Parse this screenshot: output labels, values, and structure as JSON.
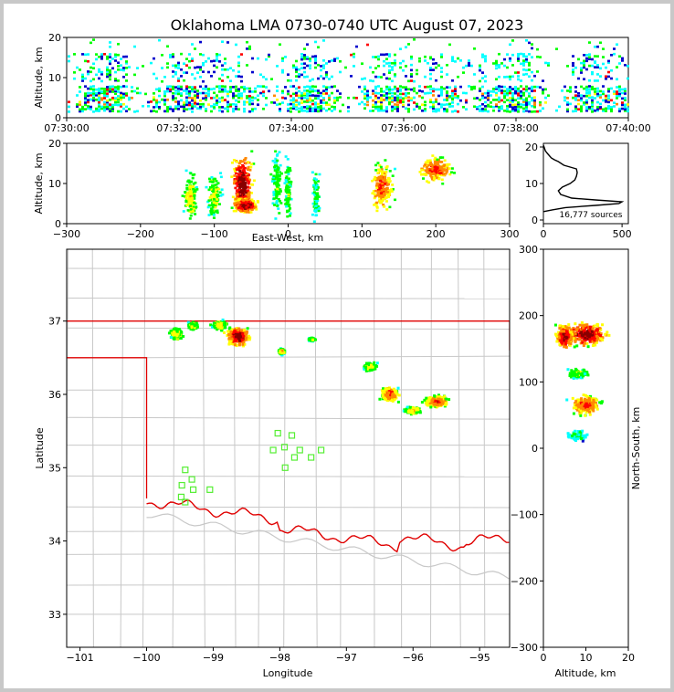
{
  "title": "Oklahoma LMA 0730-0740 UTC August 07, 2023",
  "chart_data": [
    {
      "type": "heatmap",
      "panel": "altitude-time",
      "xlabel": "",
      "ylabel": "Altitude, km",
      "xticks": [
        "07:30:00",
        "07:32:00",
        "07:34:00",
        "07:36:00",
        "07:38:00",
        "07:40:00"
      ],
      "yticks": [
        "0",
        "10",
        "20"
      ],
      "xlim": [
        "07:30:00",
        "07:40:00"
      ],
      "ylim": [
        0,
        20
      ],
      "altitude_layers_km": [
        [
          1.5,
          8.5,
          0.8
        ],
        [
          9.0,
          16.5,
          0.35
        ],
        [
          17.0,
          20.0,
          0.08
        ]
      ],
      "grid": false
    },
    {
      "type": "heatmap",
      "panel": "altitude-east-west",
      "xlabel": "East-West, km",
      "ylabel": "Altitude, km",
      "xticks": [
        "−300",
        "−200",
        "−100",
        "0",
        "100",
        "200",
        "300"
      ],
      "yticks": [
        "0",
        "10",
        "20"
      ],
      "xlim": [
        -300,
        300
      ],
      "ylim": [
        0,
        20
      ],
      "cells": [
        {
          "ew": -62,
          "z": 10,
          "sx": 12,
          "sz": 6,
          "i": 1.0
        },
        {
          "ew": -58,
          "z": 4.5,
          "sx": 14,
          "sz": 1.5,
          "i": 1.0
        },
        {
          "ew": -132,
          "z": 7,
          "sx": 8,
          "sz": 5,
          "i": 0.45
        },
        {
          "ew": -100,
          "z": 7,
          "sx": 8,
          "sz": 5,
          "i": 0.4
        },
        {
          "ew": -15,
          "z": 10,
          "sx": 6,
          "sz": 6,
          "i": 0.3
        },
        {
          "ew": 0,
          "z": 8,
          "sx": 4,
          "sz": 6,
          "i": 0.3
        },
        {
          "ew": 38,
          "z": 7,
          "sx": 4,
          "sz": 5,
          "i": 0.2
        },
        {
          "ew": 127,
          "z": 9,
          "sx": 12,
          "sz": 5,
          "i": 0.75
        },
        {
          "ew": 200,
          "z": 13.5,
          "sx": 20,
          "sz": 2.5,
          "i": 0.75
        }
      ],
      "grid": false
    },
    {
      "type": "line",
      "panel": "altitude-histogram",
      "annotation": "16,777 sources",
      "xticks": [
        "0",
        "500"
      ],
      "yticks": [
        "0",
        "10",
        "20"
      ],
      "xlim": [
        0,
        540
      ],
      "ylim": [
        -1,
        21
      ],
      "x": [
        0,
        60,
        140,
        330,
        480,
        500,
        330,
        180,
        110,
        95,
        120,
        170,
        200,
        210,
        215,
        210,
        170,
        130,
        95,
        70,
        50,
        30,
        20,
        12,
        6,
        0
      ],
      "y": [
        2.3,
        2.8,
        3.4,
        4.0,
        4.5,
        5.0,
        5.5,
        6.0,
        7.0,
        8.0,
        9.0,
        10.0,
        11.0,
        12.0,
        13.0,
        14.0,
        14.5,
        15.0,
        16.0,
        16.5,
        17.0,
        18.0,
        18.5,
        19.0,
        19.8,
        20.5
      ]
    },
    {
      "type": "heatmap",
      "panel": "plan-view-map",
      "xlabel": "Longitude",
      "ylabel": "Latitude",
      "xticks": [
        "−101",
        "−100",
        "−99",
        "−98",
        "−97",
        "−96",
        "−95"
      ],
      "yticks": [
        "33",
        "34",
        "35",
        "36",
        "37"
      ],
      "xlim": [
        -101.2,
        -94.55
      ],
      "ylim": [
        32.55,
        37.98
      ],
      "cells": [
        {
          "lon": -98.62,
          "lat": 36.79,
          "sx": 0.14,
          "sy": 0.1,
          "i": 1.0
        },
        {
          "lon": -98.9,
          "lat": 36.94,
          "sx": 0.09,
          "sy": 0.05,
          "i": 0.5
        },
        {
          "lon": -99.3,
          "lat": 36.93,
          "sx": 0.06,
          "sy": 0.04,
          "i": 0.45
        },
        {
          "lon": -99.55,
          "lat": 36.82,
          "sx": 0.08,
          "sy": 0.06,
          "i": 0.5
        },
        {
          "lon": -97.97,
          "lat": 36.58,
          "sx": 0.04,
          "sy": 0.03,
          "i": 0.55
        },
        {
          "lon": -97.52,
          "lat": 36.75,
          "sx": 0.04,
          "sy": 0.02,
          "i": 0.35
        },
        {
          "lon": -96.65,
          "lat": 36.37,
          "sx": 0.08,
          "sy": 0.05,
          "i": 0.4
        },
        {
          "lon": -96.35,
          "lat": 36.0,
          "sx": 0.1,
          "sy": 0.08,
          "i": 0.8
        },
        {
          "lon": -95.65,
          "lat": 35.9,
          "sx": 0.14,
          "sy": 0.06,
          "i": 0.75
        },
        {
          "lon": -96.0,
          "lat": 35.78,
          "sx": 0.1,
          "sy": 0.04,
          "i": 0.5
        }
      ],
      "stations": [
        {
          "lon": -98.03,
          "lat": 35.47
        },
        {
          "lon": -97.82,
          "lat": 35.44
        },
        {
          "lon": -97.93,
          "lat": 35.28
        },
        {
          "lon": -98.1,
          "lat": 35.24
        },
        {
          "lon": -97.7,
          "lat": 35.24
        },
        {
          "lon": -97.38,
          "lat": 35.24
        },
        {
          "lon": -97.78,
          "lat": 35.14
        },
        {
          "lon": -97.53,
          "lat": 35.14
        },
        {
          "lon": -97.92,
          "lat": 35.0
        },
        {
          "lon": -99.42,
          "lat": 34.97
        },
        {
          "lon": -99.32,
          "lat": 34.84
        },
        {
          "lon": -99.47,
          "lat": 34.76
        },
        {
          "lon": -99.3,
          "lat": 34.7
        },
        {
          "lon": -99.05,
          "lat": 34.7
        },
        {
          "lon": -99.48,
          "lat": 34.6
        },
        {
          "lon": -99.42,
          "lat": 34.53
        }
      ],
      "colors": {
        "state_border": "#e00000",
        "county_lines": "#c8c8c8",
        "stations": "#55ee33"
      }
    },
    {
      "type": "heatmap",
      "panel": "north-south-altitude",
      "xlabel": "Altitude, km",
      "ylabel": "North-South, km",
      "xticks": [
        "0",
        "10",
        "20"
      ],
      "yticks": [
        "−300",
        "−200",
        "−100",
        "0",
        "100",
        "200",
        "300"
      ],
      "xlim": [
        0,
        20
      ],
      "ylim": [
        -300,
        300
      ],
      "cells": [
        {
          "z": 10,
          "ns": 172,
          "sx": 4,
          "sy": 14,
          "i": 1.0
        },
        {
          "z": 5,
          "ns": 168,
          "sx": 1.5,
          "sy": 14,
          "i": 1.0
        },
        {
          "z": 10,
          "ns": 65,
          "sx": 3,
          "sy": 12,
          "i": 0.75
        },
        {
          "z": 8,
          "ns": 112,
          "sx": 2,
          "sy": 6,
          "i": 0.35
        },
        {
          "z": 8,
          "ns": 18,
          "sx": 2,
          "sy": 6,
          "i": 0.15
        }
      ]
    }
  ]
}
